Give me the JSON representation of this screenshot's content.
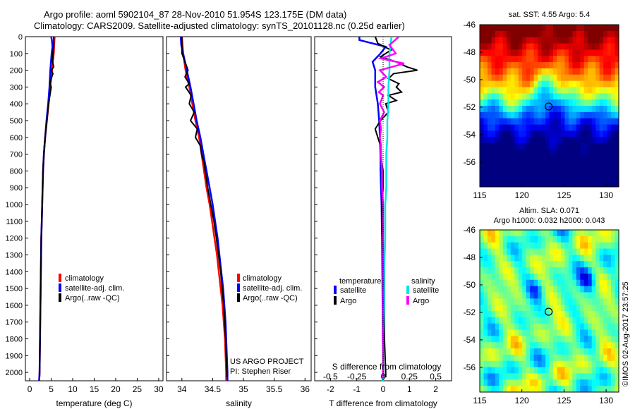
{
  "header": {
    "line1": "Argo profile: aoml 5902104_87 28-Nov-2010 51.954S 123.175E (DM data)",
    "line2": "Climatology: CARS2009. Satellite-adjusted climatology: synTS_20101128.nc (0.25d earlier)"
  },
  "colors": {
    "climatology": "#ff0000",
    "satellite": "#0000ff",
    "argo": "#000000",
    "salinity_satellite": "#00e5e5",
    "salinity_argo": "#ff00ff"
  },
  "chart_data": [
    {
      "type": "line",
      "name": "temperature",
      "xlabel": "temperature (deg C)",
      "ylabel": "",
      "xlim": [
        -1,
        31
      ],
      "ylim": [
        2050,
        0
      ],
      "xticks": [
        0,
        5,
        10,
        15,
        20,
        25,
        30
      ],
      "yticks": [
        0,
        100,
        200,
        300,
        400,
        500,
        600,
        700,
        800,
        900,
        1000,
        1100,
        1200,
        1300,
        1400,
        1500,
        1600,
        1700,
        1800,
        1900,
        2000
      ],
      "legend": [
        "climatology",
        "satellite-adj. clim.",
        "Argo(..raw -QC)"
      ],
      "series": [
        {
          "name": "climatology",
          "depth": [
            0,
            100,
            200,
            300,
            400,
            500,
            600,
            700,
            800,
            900,
            1000,
            1100,
            1200,
            1400,
            1600,
            1800,
            2000,
            2050
          ],
          "values": [
            5.8,
            5.6,
            5.2,
            4.8,
            4.4,
            4.0,
            3.6,
            3.3,
            3.1,
            3.0,
            2.9,
            2.8,
            2.7,
            2.6,
            2.5,
            2.4,
            2.3,
            2.2
          ]
        },
        {
          "name": "satellite-adj. clim.",
          "depth": [
            0,
            30,
            60,
            100,
            200,
            300,
            400,
            500,
            600,
            700,
            800,
            900,
            1000,
            1100,
            1200,
            1400,
            1600,
            1800,
            2000,
            2050
          ],
          "values": [
            5.0,
            5.2,
            5.3,
            5.1,
            4.8,
            4.6,
            4.3,
            3.9,
            3.6,
            3.3,
            3.1,
            3.0,
            2.9,
            2.8,
            2.7,
            2.6,
            2.5,
            2.4,
            2.3,
            2.2
          ]
        },
        {
          "name": "Argo(..raw -QC)",
          "depth": [
            0,
            50,
            100,
            150,
            180,
            200,
            220,
            250,
            280,
            300,
            350,
            400,
            450,
            500,
            550,
            600,
            650,
            700,
            800,
            900,
            1000,
            1100,
            1200,
            1400,
            1600,
            1800,
            2000,
            2030
          ],
          "values": [
            5.6,
            5.6,
            5.4,
            5.3,
            5.6,
            5.0,
            5.4,
            5.0,
            4.7,
            5.0,
            4.7,
            4.4,
            4.2,
            4.0,
            3.8,
            3.6,
            3.4,
            3.3,
            3.1,
            3.0,
            2.9,
            2.8,
            2.7,
            2.6,
            2.5,
            2.4,
            2.3,
            2.3
          ]
        }
      ]
    },
    {
      "type": "line",
      "name": "salinity",
      "xlabel": "salinity",
      "ylabel": "",
      "xlim": [
        33.75,
        36.1
      ],
      "ylim": [
        2050,
        0
      ],
      "xticks": [
        34,
        34.5,
        35,
        35.5,
        36
      ],
      "legend": [
        "climatology",
        "satellite-adj. clim.",
        "Argo(..raw -QC)"
      ],
      "annotation": [
        "US ARGO PROJECT",
        "PI: Stephen Riser"
      ],
      "series": [
        {
          "name": "climatology",
          "depth": [
            0,
            100,
            200,
            300,
            400,
            500,
            600,
            700,
            800,
            900,
            1000,
            1100,
            1200,
            1300,
            1400,
            1500,
            1600,
            1700,
            1800,
            1900,
            2000,
            2050
          ],
          "values": [
            34.0,
            34.02,
            34.06,
            34.12,
            34.17,
            34.22,
            34.28,
            34.32,
            34.36,
            34.4,
            34.45,
            34.49,
            34.53,
            34.57,
            34.6,
            34.63,
            34.66,
            34.68,
            34.7,
            34.71,
            34.72,
            34.72
          ]
        },
        {
          "name": "satellite-adj. clim.",
          "depth": [
            0,
            50,
            100,
            200,
            300,
            400,
            500,
            600,
            700,
            800,
            900,
            1000,
            1100,
            1200,
            1300,
            1400,
            1500,
            1600,
            1700,
            1800,
            1900,
            2000,
            2050
          ],
          "values": [
            33.98,
            33.99,
            34.02,
            34.08,
            34.14,
            34.19,
            34.24,
            34.3,
            34.35,
            34.4,
            34.45,
            34.5,
            34.54,
            34.58,
            34.61,
            34.64,
            34.67,
            34.69,
            34.71,
            34.72,
            34.73,
            34.74,
            34.74
          ]
        },
        {
          "name": "Argo(..raw -QC)",
          "depth": [
            0,
            100,
            150,
            200,
            240,
            280,
            300,
            350,
            400,
            450,
            500,
            550,
            600,
            650,
            700,
            750,
            800,
            900,
            1000,
            1100,
            1200,
            1400,
            1600,
            1800,
            2000,
            2030
          ],
          "values": [
            34.0,
            34.0,
            34.05,
            34.1,
            34.05,
            34.12,
            34.06,
            34.15,
            34.12,
            34.2,
            34.14,
            34.25,
            34.22,
            34.3,
            34.32,
            34.36,
            34.38,
            34.42,
            34.47,
            34.52,
            34.56,
            34.63,
            34.68,
            34.71,
            34.73,
            34.73
          ]
        }
      ]
    },
    {
      "type": "line",
      "name": "differences",
      "xlabel": "T difference from climatology",
      "xlabel_top": "S difference from climatology",
      "xlim": [
        -2.6,
        2.6
      ],
      "ylim": [
        2050,
        0
      ],
      "xticks": [
        -2,
        -1,
        0,
        1,
        2
      ],
      "xticks_top_values": [
        -0.5,
        -0.25,
        0,
        0.25,
        0.5
      ],
      "xticks_top_labels": [
        "-0.5",
        "-0.25",
        "0",
        "0.25",
        "0.5"
      ],
      "legend_headers": [
        "temperature",
        "salinity"
      ],
      "legend": [
        "satellite",
        "Argo",
        "satellite",
        "Argo"
      ],
      "series": [
        {
          "name": "satellite",
          "quantity": "temperature",
          "depth": [
            0,
            20,
            60,
            100,
            150,
            200,
            250,
            300,
            400,
            500,
            600,
            700,
            800,
            900,
            1000,
            1100,
            1200,
            1400,
            1600,
            1800,
            2000,
            2050
          ],
          "values": [
            -0.9,
            -0.9,
            0.1,
            -0.1,
            -0.4,
            -0.3,
            -0.3,
            -0.3,
            -0.2,
            -0.15,
            -0.12,
            -0.1,
            -0.1,
            -0.08,
            -0.06,
            -0.05,
            -0.04,
            -0.03,
            -0.02,
            -0.01,
            0.0,
            0.0
          ]
        },
        {
          "name": "Argo",
          "quantity": "temperature",
          "depth": [
            0,
            40,
            80,
            120,
            150,
            180,
            200,
            220,
            250,
            280,
            300,
            330,
            350,
            380,
            400,
            450,
            500,
            550,
            600,
            650,
            700,
            800,
            900,
            1000,
            1100,
            1200,
            1400,
            1600,
            1800,
            2000,
            2030
          ],
          "values": [
            -0.3,
            -0.2,
            0.3,
            -0.1,
            0.5,
            0.9,
            1.3,
            0.4,
            0.2,
            0.6,
            0.5,
            0.7,
            0.2,
            0.5,
            0.1,
            0.2,
            -0.1,
            -0.3,
            -0.2,
            -0.1,
            -0.1,
            0.0,
            0.0,
            -0.05,
            -0.05,
            -0.03,
            0.05,
            0.05,
            0.05,
            0.1,
            0.1
          ]
        },
        {
          "name": "satellite",
          "quantity": "salinity",
          "depth": [
            0,
            50,
            100,
            200,
            300,
            400,
            500,
            600,
            700,
            800,
            900,
            1000,
            1200,
            1400,
            1600,
            1800,
            2000,
            2050
          ],
          "values": [
            0.08,
            0.07,
            0.06,
            0.06,
            0.05,
            0.05,
            0.04,
            0.04,
            0.03,
            0.03,
            0.03,
            0.02,
            0.02,
            0.01,
            0.01,
            0.0,
            0.0,
            0.0
          ]
        },
        {
          "name": "Argo",
          "quantity": "salinity",
          "depth": [
            0,
            50,
            100,
            130,
            160,
            200,
            240,
            270,
            300,
            330,
            350,
            400,
            450,
            500,
            550,
            600,
            650,
            700,
            800,
            900,
            1000,
            1100,
            1200,
            1400,
            1600,
            1800,
            2000,
            2030
          ],
          "values": [
            0.15,
            0.06,
            0.12,
            -0.02,
            0.2,
            -0.03,
            0.03,
            -0.05,
            0.01,
            -0.04,
            0.0,
            -0.03,
            0.01,
            -0.03,
            -0.02,
            -0.03,
            -0.02,
            -0.02,
            -0.01,
            -0.01,
            0.0,
            0.0,
            0.0,
            0.0,
            0.0,
            0.0,
            0.0,
            0.0
          ]
        }
      ]
    },
    {
      "type": "heatmap",
      "name": "sst-map",
      "title": "sat. SST: 4.55  Argo: 5.4",
      "xlim": [
        115,
        131.5
      ],
      "ylim": [
        -57.8,
        -46
      ],
      "xticks": [
        115,
        120,
        125,
        130
      ],
      "yticks": [
        -46,
        -48,
        -50,
        -52,
        -54,
        -56
      ],
      "marker": {
        "lon": 123.175,
        "lat": -51.954
      },
      "palette": "jet"
    },
    {
      "type": "heatmap",
      "name": "sla-map",
      "title": "Altim. SLA: 0.071",
      "subtitle": "Argo h1000: 0.032  h2000: 0.043",
      "xlim": [
        115,
        131.5
      ],
      "ylim": [
        -57.8,
        -46
      ],
      "xticks": [
        115,
        120,
        125,
        130
      ],
      "yticks": [
        -46,
        -48,
        -50,
        -52,
        -54,
        -56
      ],
      "marker": {
        "lon": 123.175,
        "lat": -51.954
      },
      "palette": "jet"
    }
  ],
  "footer": {
    "credit": "©IMOS 02-Aug-2017 23:57:25"
  }
}
